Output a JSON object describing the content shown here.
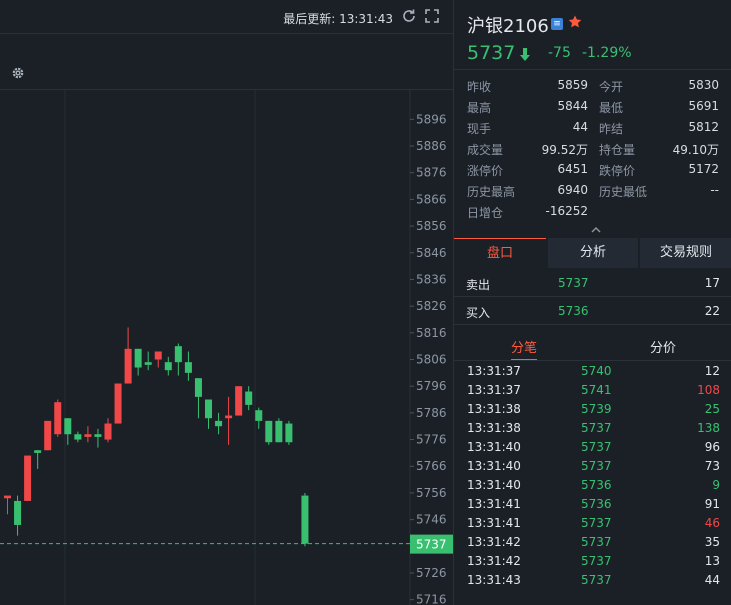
{
  "topbar": {
    "last_update": "最后更新: 13:31:43",
    "refresh_icon": "refresh-icon",
    "fullscreen_icon": "fullscreen-icon",
    "settings_icon": "gear-icon"
  },
  "symbol": {
    "name": "沪银2106",
    "badge": "≡",
    "last_price": "5737",
    "change": "-75",
    "change_pct": "-1.29%",
    "colors": {
      "up": "#f04848",
      "down": "#38c070",
      "accent": "#ff5a3c"
    }
  },
  "stats": [
    {
      "label": "昨收",
      "value": "5859"
    },
    {
      "label": "今开",
      "value": "5830"
    },
    {
      "label": "最高",
      "value": "5844"
    },
    {
      "label": "最低",
      "value": "5691"
    },
    {
      "label": "现手",
      "value": "44"
    },
    {
      "label": "昨结",
      "value": "5812"
    },
    {
      "label": "成交量",
      "value": "99.52万"
    },
    {
      "label": "持仓量",
      "value": "49.10万"
    },
    {
      "label": "涨停价",
      "value": "6451"
    },
    {
      "label": "跌停价",
      "value": "5172"
    },
    {
      "label": "历史最高",
      "value": "6940"
    },
    {
      "label": "历史最低",
      "value": "--"
    },
    {
      "label": "日增仓",
      "value": "-16252"
    }
  ],
  "tabs": [
    "盘口",
    "分析",
    "交易规则"
  ],
  "orderbook": [
    {
      "label": "卖出",
      "price": "5737",
      "qty": "17"
    },
    {
      "label": "买入",
      "price": "5736",
      "qty": "22"
    }
  ],
  "subtabs": [
    "分笔",
    "分价"
  ],
  "trades": [
    {
      "time": "13:31:37",
      "price": "5740",
      "vol": "12",
      "dir": "n"
    },
    {
      "time": "13:31:37",
      "price": "5741",
      "vol": "108",
      "dir": "b"
    },
    {
      "time": "13:31:38",
      "price": "5739",
      "vol": "25",
      "dir": "s"
    },
    {
      "time": "13:31:38",
      "price": "5737",
      "vol": "138",
      "dir": "s"
    },
    {
      "time": "13:31:40",
      "price": "5737",
      "vol": "96",
      "dir": "n"
    },
    {
      "time": "13:31:40",
      "price": "5737",
      "vol": "73",
      "dir": "n"
    },
    {
      "time": "13:31:40",
      "price": "5736",
      "vol": "9",
      "dir": "s"
    },
    {
      "time": "13:31:41",
      "price": "5736",
      "vol": "91",
      "dir": "n"
    },
    {
      "time": "13:31:41",
      "price": "5737",
      "vol": "46",
      "dir": "b"
    },
    {
      "time": "13:31:42",
      "price": "5737",
      "vol": "35",
      "dir": "n"
    },
    {
      "time": "13:31:42",
      "price": "5737",
      "vol": "13",
      "dir": "n"
    },
    {
      "time": "13:31:43",
      "price": "5737",
      "vol": "44",
      "dir": "n"
    }
  ],
  "chart_data": {
    "type": "candlestick",
    "y_ticks": [
      "5896",
      "5886",
      "5876",
      "5866",
      "5856",
      "5846",
      "5836",
      "5826",
      "5816",
      "5806",
      "5796",
      "5786",
      "5776",
      "5766",
      "5756",
      "5746",
      "5726",
      "5716"
    ],
    "y_range": [
      5714,
      5907
    ],
    "last_price": "5737",
    "candles": [
      {
        "o": 5754,
        "h": 5755,
        "l": 5748,
        "c": 5755
      },
      {
        "o": 5753,
        "h": 5755,
        "l": 5740,
        "c": 5744
      },
      {
        "o": 5753,
        "h": 5770,
        "l": 5753,
        "c": 5770
      },
      {
        "o": 5772,
        "h": 5772,
        "l": 5765,
        "c": 5771
      },
      {
        "o": 5772,
        "h": 5783,
        "l": 5772,
        "c": 5783
      },
      {
        "o": 5778,
        "h": 5791,
        "l": 5777,
        "c": 5790
      },
      {
        "o": 5784,
        "h": 5784,
        "l": 5774,
        "c": 5778
      },
      {
        "o": 5778,
        "h": 5779,
        "l": 5775,
        "c": 5776
      },
      {
        "o": 5777,
        "h": 5781,
        "l": 5775,
        "c": 5778
      },
      {
        "o": 5778,
        "h": 5780,
        "l": 5773,
        "c": 5777
      },
      {
        "o": 5776,
        "h": 5784,
        "l": 5775,
        "c": 5782
      },
      {
        "o": 5782,
        "h": 5797,
        "l": 5782,
        "c": 5797
      },
      {
        "o": 5797,
        "h": 5818,
        "l": 5797,
        "c": 5810
      },
      {
        "o": 5810,
        "h": 5810,
        "l": 5800,
        "c": 5803
      },
      {
        "o": 5805,
        "h": 5809,
        "l": 5802,
        "c": 5804
      },
      {
        "o": 5806,
        "h": 5809,
        "l": 5803,
        "c": 5809
      },
      {
        "o": 5805,
        "h": 5807,
        "l": 5800,
        "c": 5802
      },
      {
        "o": 5811,
        "h": 5812,
        "l": 5800,
        "c": 5805
      },
      {
        "o": 5805,
        "h": 5809,
        "l": 5798,
        "c": 5801
      },
      {
        "o": 5799,
        "h": 5799,
        "l": 5784,
        "c": 5792
      },
      {
        "o": 5791,
        "h": 5791,
        "l": 5780,
        "c": 5784
      },
      {
        "o": 5783,
        "h": 5786,
        "l": 5778,
        "c": 5781
      },
      {
        "o": 5784,
        "h": 5792,
        "l": 5774,
        "c": 5785
      },
      {
        "o": 5785,
        "h": 5796,
        "l": 5785,
        "c": 5796
      },
      {
        "o": 5794,
        "h": 5796,
        "l": 5787,
        "c": 5789
      },
      {
        "o": 5787,
        "h": 5788,
        "l": 5780,
        "c": 5783
      },
      {
        "o": 5783,
        "h": 5783,
        "l": 5774,
        "c": 5775
      },
      {
        "o": 5783,
        "h": 5784,
        "l": 5775,
        "c": 5775
      },
      {
        "o": 5782,
        "h": 5783,
        "l": 5774,
        "c": 5775
      },
      {
        "o": 5755,
        "h": 5756,
        "l": 5736,
        "c": 5737
      }
    ]
  }
}
